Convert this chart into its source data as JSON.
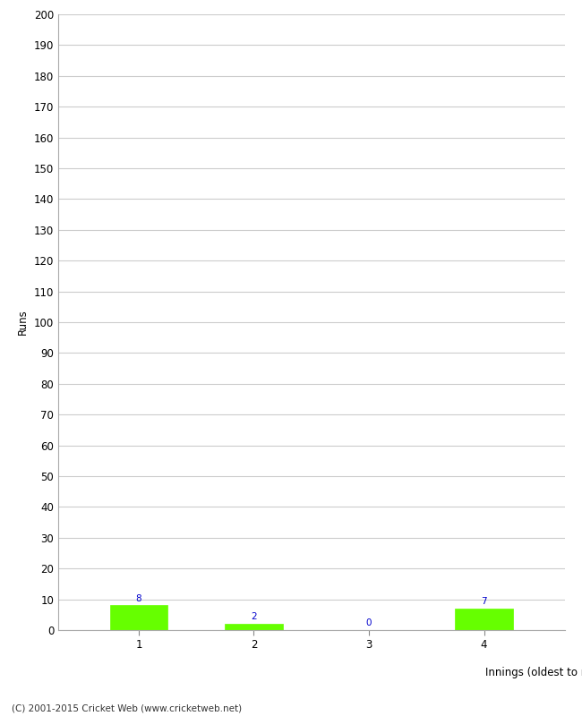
{
  "categories": [
    "1",
    "2",
    "3",
    "4"
  ],
  "values": [
    8,
    2,
    0,
    7
  ],
  "bar_color": "#66ff00",
  "bar_edge_color": "#66ff00",
  "ylabel": "Runs",
  "xlabel": "Innings (oldest to newest)",
  "ylim": [
    0,
    200
  ],
  "yticks": [
    0,
    10,
    20,
    30,
    40,
    50,
    60,
    70,
    80,
    90,
    100,
    110,
    120,
    130,
    140,
    150,
    160,
    170,
    180,
    190,
    200
  ],
  "label_color": "#0000cc",
  "label_fontsize": 7.5,
  "footer": "(C) 2001-2015 Cricket Web (www.cricketweb.net)",
  "background_color": "#ffffff",
  "grid_color": "#cccccc",
  "bar_width": 0.5,
  "tick_fontsize": 8.5,
  "axis_label_fontsize": 8.5
}
